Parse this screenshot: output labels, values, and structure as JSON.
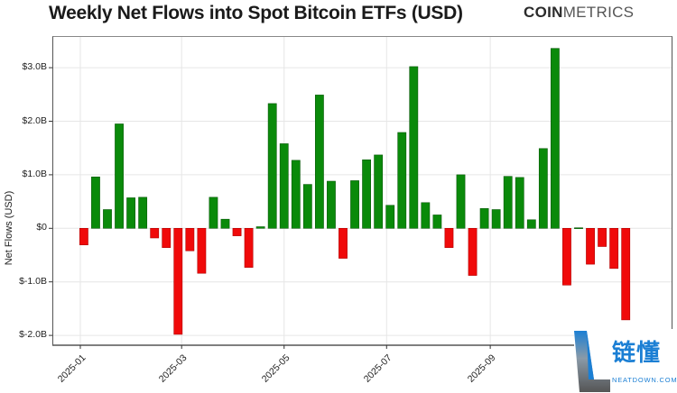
{
  "header": {
    "title": "Weekly Net Flows into Spot Bitcoin ETFs (USD)",
    "brand_bold": "COIN",
    "brand_light": "METRICS"
  },
  "watermark": {
    "text": "链懂",
    "subtext": "NEATDOWN.COM"
  },
  "colors": {
    "positive": "#0a8a0a",
    "negative": "#f00a0a",
    "grid": "#e6e6e6",
    "axis": "#555555"
  },
  "chart_data": {
    "type": "bar",
    "title": "Weekly Net Flows into Spot Bitcoin ETFs (USD)",
    "xlabel": "",
    "ylabel": "Net Flows (USD)",
    "ylim": [
      -2.2,
      3.6
    ],
    "yticks": [
      -2.0,
      -1.0,
      0,
      1.0,
      2.0,
      3.0
    ],
    "ytick_labels": [
      "$-2.0B",
      "$-1.0B",
      "$0",
      "$1.0B",
      "$2.0B",
      "$3.0B"
    ],
    "xtick_labels": [
      "2025-01",
      "2025-03",
      "2025-05",
      "2025-07",
      "2025-09"
    ],
    "xtick_bar_index": [
      -0.3,
      8.3,
      17.0,
      25.7,
      34.5
    ],
    "grid": true,
    "legend": null,
    "units": "USD billions",
    "series": [
      {
        "name": "Weekly Net Flows",
        "values": [
          -0.31,
          0.96,
          0.35,
          1.95,
          0.57,
          0.58,
          -0.18,
          -0.36,
          -1.98,
          -0.42,
          -0.84,
          0.58,
          0.17,
          -0.14,
          -0.73,
          0.03,
          2.33,
          1.58,
          1.27,
          0.82,
          2.49,
          0.88,
          -0.56,
          0.89,
          1.28,
          1.37,
          0.43,
          1.79,
          3.02,
          0.48,
          0.25,
          -0.36,
          1.0,
          -0.88,
          0.37,
          0.35,
          0.97,
          0.95,
          0.16,
          1.49,
          3.36,
          -1.06,
          0.01,
          -0.67,
          -0.34,
          -0.75,
          -1.71
        ]
      }
    ]
  }
}
